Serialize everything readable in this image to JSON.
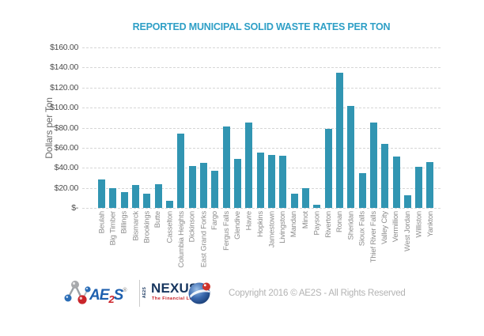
{
  "chart": {
    "title": "REPORTED MUNICIPAL SOLID WASTE RATES PER TON",
    "ylabel": "Dollars per Ton"
  },
  "chart_data": {
    "type": "bar",
    "title": "REPORTED MUNICIPAL SOLID WASTE RATES PER TON",
    "xlabel": "",
    "ylabel": "Dollars per Ton",
    "ylim": [
      0,
      160
    ],
    "grid": "dashed-horizontal",
    "legend": "none",
    "bar_color": "#3195b2",
    "y_ticks": [
      {
        "label": "$160.00",
        "value": 160
      },
      {
        "label": "$140.00",
        "value": 140
      },
      {
        "label": "$120.00",
        "value": 120
      },
      {
        "label": "$100.00",
        "value": 100
      },
      {
        "label": "$80.00",
        "value": 80
      },
      {
        "label": "$60.00",
        "value": 60
      },
      {
        "label": "$40.00",
        "value": 40
      },
      {
        "label": "$20.00",
        "value": 20
      },
      {
        "label": "$-",
        "value": 0
      }
    ],
    "categories": [
      "Beulah",
      "Big Timber",
      "Billings",
      "Bismarck",
      "Brookings",
      "Butte",
      "Casselton",
      "Columbia Heights",
      "Dickinson",
      "East Grand Forks",
      "Fargo",
      "Fergus Falls",
      "Glendive",
      "Havre",
      "Hopkins",
      "Jamestown",
      "Livingston",
      "Mandan",
      "Minot",
      "Payson",
      "Riverton",
      "Ronan",
      "Sheridan",
      "Sioux Falls",
      "Thief River Falls",
      "Valley City",
      "Vermillion",
      "West Jordan",
      "Williston",
      "Yankton"
    ],
    "values": [
      28,
      20,
      16,
      23,
      14,
      24,
      7,
      74,
      42,
      45,
      37,
      81,
      49,
      85,
      55,
      53,
      52,
      14,
      20,
      3,
      79,
      135,
      102,
      35,
      85,
      64,
      51,
      13,
      41,
      46
    ]
  },
  "footer": {
    "ae2s": {
      "prefix": "AE",
      "sub": "2",
      "suffix": "S",
      "reg": "®"
    },
    "nexus": {
      "vertical": "AE2S",
      "name": "NEXUS",
      "tagline": "The Financial Link"
    },
    "copyright": "Copyright 2016 © AE2S - All Rights Reserved"
  },
  "colors": {
    "title": "#2e9fc6",
    "bar": "#3195b2",
    "axis_text": "#4d4d4d",
    "category_text": "#8c8c8c",
    "gridline": "#d6d6d6",
    "copyright_text": "#b3b3b3",
    "ae2s_blue": "#1d5fae",
    "ae2s_red": "#cc2128",
    "nexus_navy": "#16355e"
  }
}
